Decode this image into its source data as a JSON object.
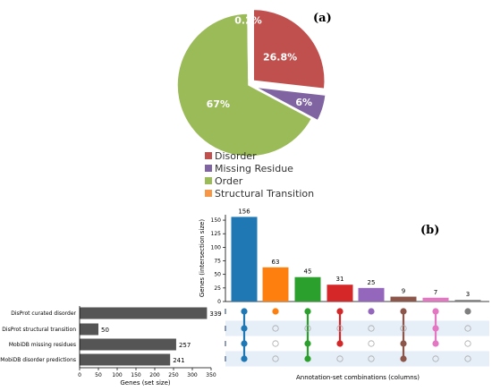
{
  "panel_a": {
    "label": "(a)",
    "chart_data": {
      "type": "pie",
      "slices": [
        {
          "name": "Disorder",
          "value": 26.8,
          "label": "26.8%",
          "color": "#c0504d",
          "exploded": true
        },
        {
          "name": "Missing Residue",
          "value": 6,
          "label": "6%",
          "color": "#8064a2",
          "exploded": true
        },
        {
          "name": "Order",
          "value": 67,
          "label": "67%",
          "color": "#9bbb59",
          "exploded": false
        },
        {
          "name": "Structural Transition",
          "value": 0.2,
          "label": "0.2%",
          "color": "#f79646",
          "exploded": true
        }
      ],
      "legend": [
        {
          "name": "Disorder",
          "color": "#c0504d"
        },
        {
          "name": "Missing Residue",
          "color": "#8064a2"
        },
        {
          "name": "Order",
          "color": "#9bbb59"
        },
        {
          "name": "Structural Transition",
          "color": "#f79646"
        }
      ],
      "legend_placement": "bottom"
    }
  },
  "panel_b": {
    "label": "(b)",
    "chart_data": {
      "type": "bar",
      "intersections": {
        "values": [
          156,
          63,
          45,
          31,
          25,
          9,
          7,
          3
        ],
        "colors": [
          "#1f77b4",
          "#ff7f0e",
          "#2ca02c",
          "#d62728",
          "#9467bd",
          "#8c564b",
          "#e377c2",
          "#7f7f7f"
        ],
        "membership": [
          [
            true,
            true,
            true,
            true
          ],
          [
            true,
            false,
            false,
            false
          ],
          [
            true,
            false,
            true,
            true
          ],
          [
            true,
            false,
            true,
            false
          ],
          [
            true,
            false,
            false,
            false
          ],
          [
            true,
            false,
            true,
            true
          ],
          [
            true,
            true,
            true,
            false
          ],
          [
            true,
            false,
            false,
            false
          ]
        ],
        "ylabel": "Genes (intersection size)",
        "ylim": [
          0,
          160
        ],
        "yticks": [
          0,
          25,
          50,
          75,
          100,
          125,
          150
        ],
        "xlabel": "Annotation-set combinations (columns)"
      },
      "set_sizes": {
        "categories": [
          "DisProt curated disorder",
          "DisProt structural transition",
          "MobiDB missing residues",
          "MobiDB disorder predictions"
        ],
        "values": [
          339,
          50,
          257,
          241
        ],
        "color": "#555555",
        "xlabel": "Genes (set size)",
        "xlim": [
          0,
          350
        ],
        "xticks": [
          0,
          50,
          100,
          150,
          200,
          250,
          300,
          350
        ]
      }
    }
  }
}
